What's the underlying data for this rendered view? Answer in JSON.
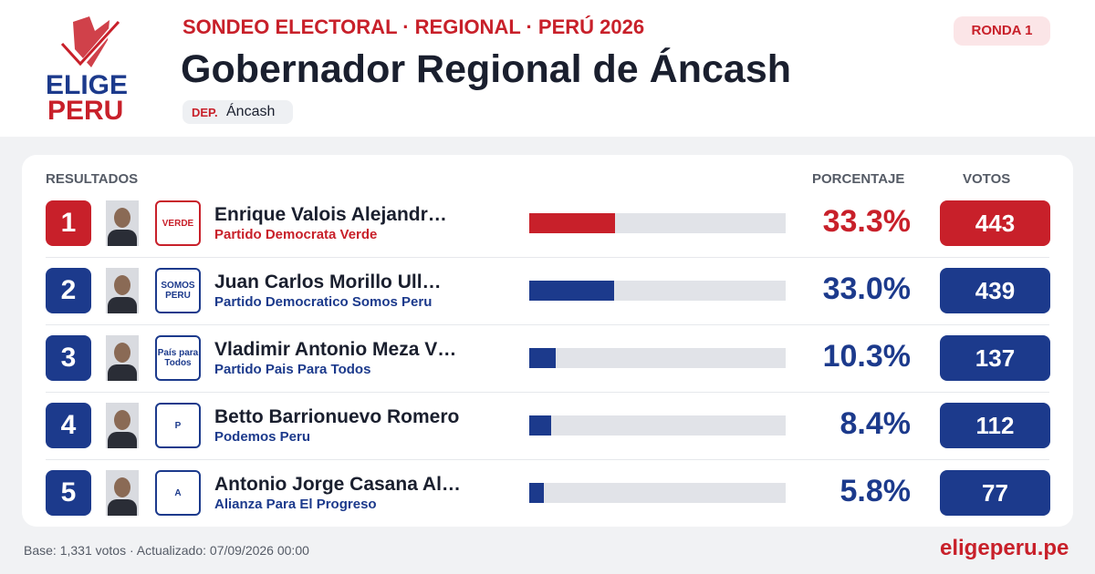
{
  "header": {
    "logo": [
      "ELIGE",
      "PERU"
    ],
    "kicker": "SONDEO ELECTORAL · REGIONAL · PERÚ 2026",
    "title": "Gobernador Regional de Áncash",
    "tag_key": "DEP.",
    "tag_value": "Áncash",
    "round": "RONDA 1"
  },
  "table": {
    "columns": [
      "RESULTADOS",
      "PORCENTAJE",
      "VOTOS"
    ],
    "xlim": [
      0,
      100
    ],
    "track_color": "#e1e3e8",
    "rows": [
      {
        "rank": "1",
        "name": "Enrique Valois Alejandr…",
        "party": "Partido Democrata Verde",
        "logo_text": "VERDE",
        "percent": {
          "value": 33.3,
          "label": "33.3%"
        },
        "votes": 443,
        "color": "#c8202a"
      },
      {
        "rank": "2",
        "name": "Juan Carlos Morillo Ull…",
        "party": "Partido Democratico Somos Peru",
        "logo_text": "SOMOS PERU",
        "percent": {
          "value": 33.0,
          "label": "33.0%"
        },
        "votes": 439,
        "color": "#1c3a8c"
      },
      {
        "rank": "3",
        "name": "Vladimir Antonio Meza V…",
        "party": "Partido Pais Para Todos",
        "logo_text": "País para Todos",
        "percent": {
          "value": 10.3,
          "label": "10.3%"
        },
        "votes": 137,
        "color": "#1c3a8c"
      },
      {
        "rank": "4",
        "name": "Betto Barrionuevo Romero",
        "party": "Podemos Peru",
        "logo_text": "P",
        "percent": {
          "value": 8.4,
          "label": "8.4%"
        },
        "votes": 112,
        "color": "#1c3a8c"
      },
      {
        "rank": "5",
        "name": "Antonio Jorge Casana Al…",
        "party": "Alianza Para El Progreso",
        "logo_text": "A",
        "percent": {
          "value": 5.8,
          "label": "5.8%"
        },
        "votes": 77,
        "color": "#1c3a8c"
      }
    ]
  },
  "footer": {
    "note": "Base: 1,331 votos · Actualizado: 07/09/2026 00:00",
    "site": "eligeperu.pe"
  }
}
